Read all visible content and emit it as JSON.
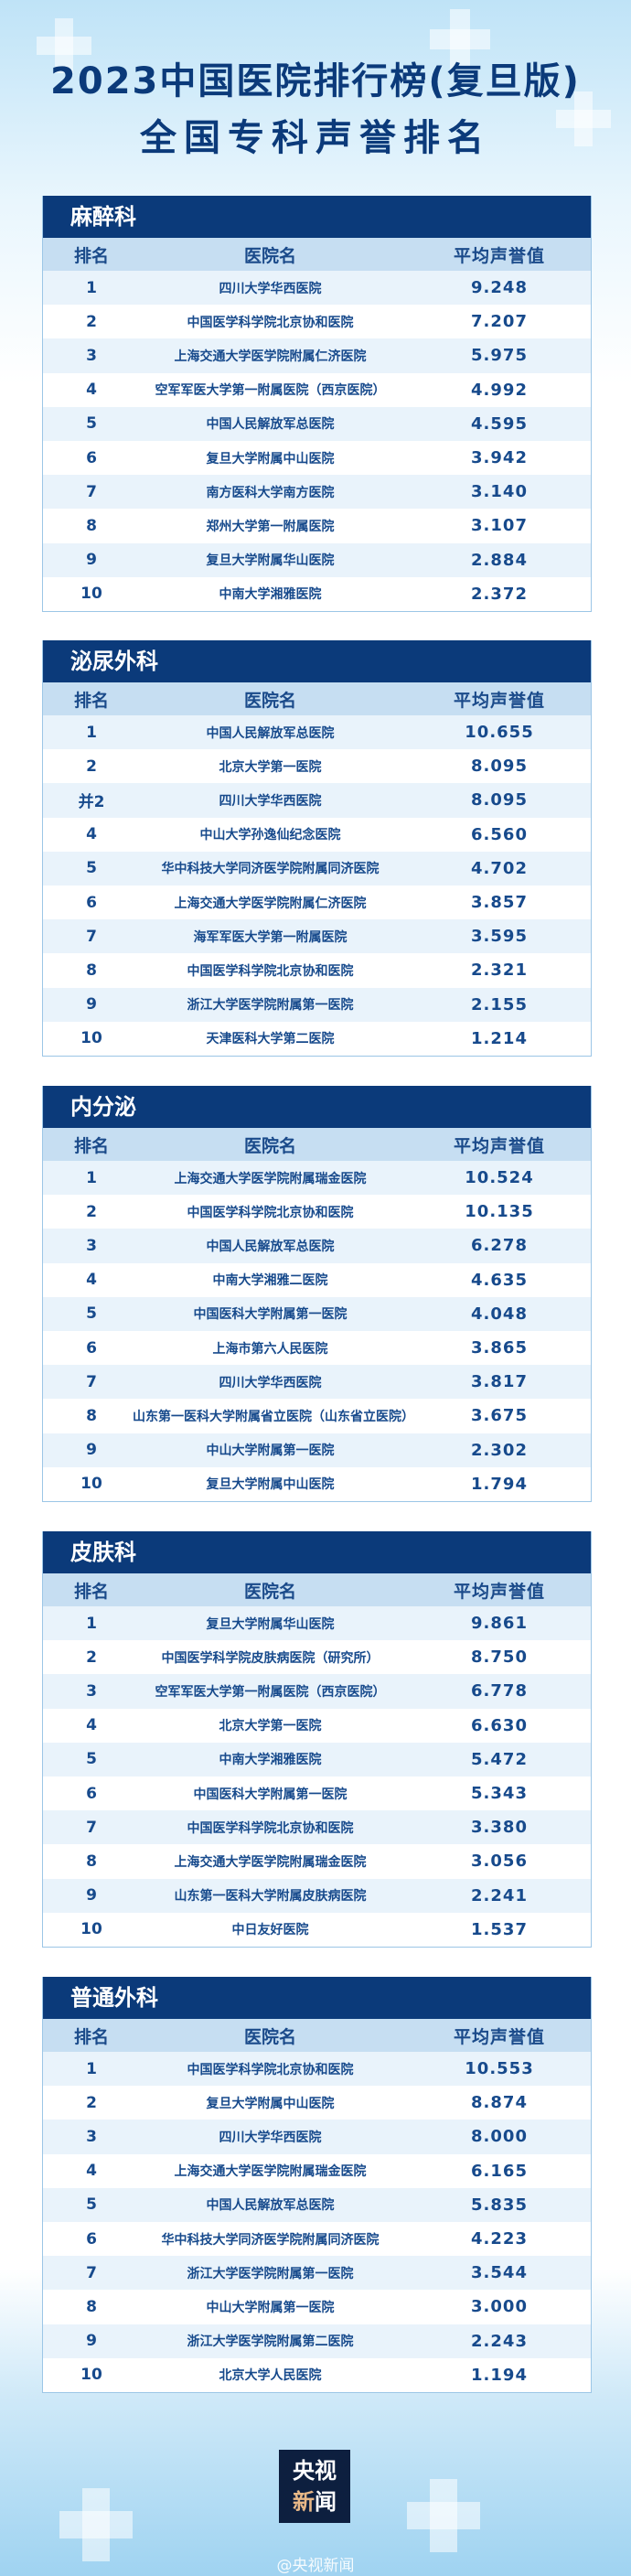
{
  "header": {
    "title_line1": "2023中国医院排行榜(复旦版)",
    "title_line2": "全国专科声誉排名"
  },
  "columns": {
    "rank": "排名",
    "hospital": "医院名",
    "score": "平均声誉值"
  },
  "colors": {
    "navy": "#0b3a7a",
    "header_row": "#c6def2",
    "alt_row": "#e9f3fb",
    "text": "#174a8c"
  },
  "tables": [
    {
      "title": "麻醉科",
      "rows": [
        [
          "1",
          "四川大学华西医院",
          "9.248"
        ],
        [
          "2",
          "中国医学科学院北京协和医院",
          "7.207"
        ],
        [
          "3",
          "上海交通大学医学院附属仁济医院",
          "5.975"
        ],
        [
          "4",
          "空军军医大学第一附属医院（西京医院）",
          "4.992"
        ],
        [
          "5",
          "中国人民解放军总医院",
          "4.595"
        ],
        [
          "6",
          "复旦大学附属中山医院",
          "3.942"
        ],
        [
          "7",
          "南方医科大学南方医院",
          "3.140"
        ],
        [
          "8",
          "郑州大学第一附属医院",
          "3.107"
        ],
        [
          "9",
          "复旦大学附属华山医院",
          "2.884"
        ],
        [
          "10",
          "中南大学湘雅医院",
          "2.372"
        ]
      ]
    },
    {
      "title": "泌尿外科",
      "rows": [
        [
          "1",
          "中国人民解放军总医院",
          "10.655"
        ],
        [
          "2",
          "北京大学第一医院",
          "8.095"
        ],
        [
          "并2",
          "四川大学华西医院",
          "8.095"
        ],
        [
          "4",
          "中山大学孙逸仙纪念医院",
          "6.560"
        ],
        [
          "5",
          "华中科技大学同济医学院附属同济医院",
          "4.702"
        ],
        [
          "6",
          "上海交通大学医学院附属仁济医院",
          "3.857"
        ],
        [
          "7",
          "海军军医大学第一附属医院",
          "3.595"
        ],
        [
          "8",
          "中国医学科学院北京协和医院",
          "2.321"
        ],
        [
          "9",
          "浙江大学医学院附属第一医院",
          "2.155"
        ],
        [
          "10",
          "天津医科大学第二医院",
          "1.214"
        ]
      ]
    },
    {
      "title": "内分泌",
      "rows": [
        [
          "1",
          "上海交通大学医学院附属瑞金医院",
          "10.524"
        ],
        [
          "2",
          "中国医学科学院北京协和医院",
          "10.135"
        ],
        [
          "3",
          "中国人民解放军总医院",
          "6.278"
        ],
        [
          "4",
          "中南大学湘雅二医院",
          "4.635"
        ],
        [
          "5",
          "中国医科大学附属第一医院",
          "4.048"
        ],
        [
          "6",
          "上海市第六人民医院",
          "3.865"
        ],
        [
          "7",
          "四川大学华西医院",
          "3.817"
        ],
        [
          "8",
          "山东第一医科大学附属省立医院（山东省立医院）",
          "3.675"
        ],
        [
          "9",
          "中山大学附属第一医院",
          "2.302"
        ],
        [
          "10",
          "复旦大学附属中山医院",
          "1.794"
        ]
      ]
    },
    {
      "title": "皮肤科",
      "rows": [
        [
          "1",
          "复旦大学附属华山医院",
          "9.861"
        ],
        [
          "2",
          "中国医学科学院皮肤病医院（研究所）",
          "8.750"
        ],
        [
          "3",
          "空军军医大学第一附属医院（西京医院）",
          "6.778"
        ],
        [
          "4",
          "北京大学第一医院",
          "6.630"
        ],
        [
          "5",
          "中南大学湘雅医院",
          "5.472"
        ],
        [
          "6",
          "中国医科大学附属第一医院",
          "5.343"
        ],
        [
          "7",
          "中国医学科学院北京协和医院",
          "3.380"
        ],
        [
          "8",
          "上海交通大学医学院附属瑞金医院",
          "3.056"
        ],
        [
          "9",
          "山东第一医科大学附属皮肤病医院",
          "2.241"
        ],
        [
          "10",
          "中日友好医院",
          "1.537"
        ]
      ]
    },
    {
      "title": "普通外科",
      "rows": [
        [
          "1",
          "中国医学科学院北京协和医院",
          "10.553"
        ],
        [
          "2",
          "复旦大学附属中山医院",
          "8.874"
        ],
        [
          "3",
          "四川大学华西医院",
          "8.000"
        ],
        [
          "4",
          "上海交通大学医学院附属瑞金医院",
          "6.165"
        ],
        [
          "5",
          "中国人民解放军总医院",
          "5.835"
        ],
        [
          "6",
          "华中科技大学同济医学院附属同济医院",
          "4.223"
        ],
        [
          "7",
          "浙江大学医学院附属第一医院",
          "3.544"
        ],
        [
          "8",
          "中山大学附属第一医院",
          "3.000"
        ],
        [
          "9",
          "浙江大学医学院附属第二医院",
          "2.243"
        ],
        [
          "10",
          "北京大学人民医院",
          "1.194"
        ]
      ]
    }
  ],
  "footer": {
    "logo_line1": "央视",
    "logo_line2a": "新",
    "logo_line2b": "闻",
    "watermark": "@央视新闻"
  }
}
